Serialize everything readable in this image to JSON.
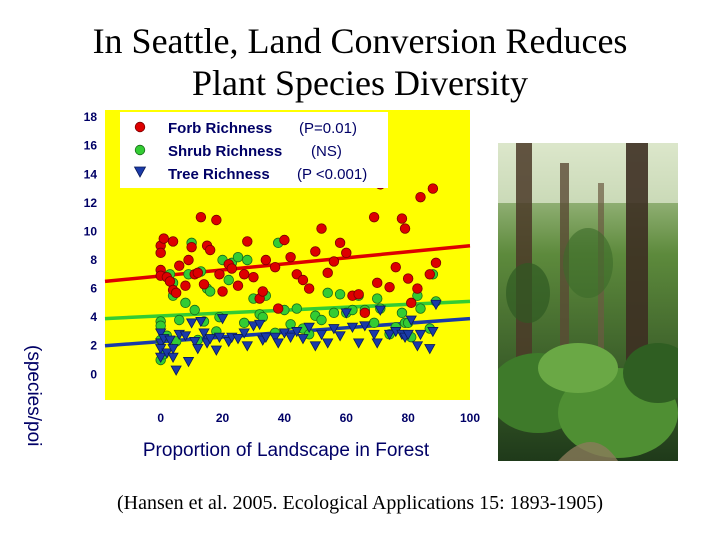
{
  "slide": {
    "title_line1": "In Seattle, Land Conversion Reduces",
    "title_line2": "Plant Species Diversity",
    "citation": "(Hansen et al. 2005. Ecological Applications 15: 1893-1905)"
  },
  "chart_data": {
    "type": "scatter",
    "title": "",
    "xlabel": "Proportion of Landscape in Forest",
    "ylabel": "(species/poi",
    "xlim": [
      -18,
      100
    ],
    "ylim": [
      -1.8,
      18.5
    ],
    "xticks": [
      0,
      20,
      40,
      60,
      80,
      100
    ],
    "yticks": [
      0,
      2,
      4,
      6,
      8,
      10,
      12,
      14,
      16,
      18
    ],
    "background_color": "#ffff00",
    "grid": false,
    "legend_position": "top-left",
    "series": [
      {
        "name": "Forb Richness",
        "stat_label": "(P=0.01)",
        "color": "#dd0000",
        "marker": "circle",
        "trend": [
          [
            -18,
            6.5
          ],
          [
            100,
            9.0
          ]
        ],
        "points": [
          [
            0,
            7.3
          ],
          [
            0,
            6.9
          ],
          [
            0,
            9.0
          ],
          [
            0,
            8.5
          ],
          [
            1,
            9.5
          ],
          [
            2,
            6.8
          ],
          [
            3,
            6.5
          ],
          [
            4,
            5.9
          ],
          [
            4,
            9.3
          ],
          [
            5,
            5.7
          ],
          [
            6,
            7.6
          ],
          [
            8,
            6.2
          ],
          [
            9,
            8.0
          ],
          [
            10,
            8.9
          ],
          [
            11,
            7.0
          ],
          [
            12,
            7.1
          ],
          [
            13,
            11.0
          ],
          [
            14,
            6.3
          ],
          [
            15,
            9.0
          ],
          [
            16,
            8.7
          ],
          [
            18,
            10.8
          ],
          [
            19,
            7.0
          ],
          [
            20,
            5.8
          ],
          [
            22,
            7.7
          ],
          [
            23,
            7.4
          ],
          [
            25,
            6.2
          ],
          [
            27,
            7.0
          ],
          [
            28,
            9.3
          ],
          [
            30,
            6.8
          ],
          [
            32,
            5.3
          ],
          [
            33,
            5.8
          ],
          [
            34,
            8.0
          ],
          [
            37,
            7.5
          ],
          [
            38,
            4.6
          ],
          [
            40,
            9.4
          ],
          [
            42,
            8.2
          ],
          [
            44,
            7.0
          ],
          [
            46,
            6.6
          ],
          [
            48,
            6.0
          ],
          [
            50,
            8.6
          ],
          [
            52,
            10.2
          ],
          [
            54,
            7.1
          ],
          [
            56,
            7.9
          ],
          [
            58,
            9.2
          ],
          [
            60,
            8.5
          ],
          [
            62,
            5.5
          ],
          [
            64,
            5.6
          ],
          [
            66,
            4.3
          ],
          [
            69,
            11.0
          ],
          [
            70,
            6.4
          ],
          [
            71,
            13.3
          ],
          [
            74,
            6.1
          ],
          [
            76,
            7.5
          ],
          [
            78,
            10.9
          ],
          [
            79,
            10.2
          ],
          [
            80,
            6.7
          ],
          [
            81,
            5.0
          ],
          [
            83,
            6.0
          ],
          [
            84,
            12.4
          ],
          [
            87,
            7.0
          ],
          [
            88,
            13.0
          ],
          [
            89,
            7.8
          ]
        ]
      },
      {
        "name": "Shrub Richness",
        "stat_label": "(NS)",
        "color": "#33cc33",
        "marker": "circle",
        "trend": [
          [
            -18,
            3.9
          ],
          [
            100,
            5.1
          ]
        ],
        "points": [
          [
            0,
            3.7
          ],
          [
            0,
            3.4
          ],
          [
            0,
            1.0
          ],
          [
            0,
            2.4
          ],
          [
            1,
            1.4
          ],
          [
            2,
            2.7
          ],
          [
            3,
            7.0
          ],
          [
            4,
            5.5
          ],
          [
            4,
            6.4
          ],
          [
            5,
            2.3
          ],
          [
            6,
            3.8
          ],
          [
            8,
            5.0
          ],
          [
            9,
            7.0
          ],
          [
            10,
            9.2
          ],
          [
            11,
            4.5
          ],
          [
            12,
            2.4
          ],
          [
            13,
            7.2
          ],
          [
            14,
            3.7
          ],
          [
            15,
            6.0
          ],
          [
            16,
            5.8
          ],
          [
            18,
            3.0
          ],
          [
            19,
            4.0
          ],
          [
            20,
            8.0
          ],
          [
            22,
            6.6
          ],
          [
            23,
            7.8
          ],
          [
            25,
            8.2
          ],
          [
            27,
            3.6
          ],
          [
            28,
            8.0
          ],
          [
            30,
            5.3
          ],
          [
            32,
            4.2
          ],
          [
            33,
            4.0
          ],
          [
            34,
            5.5
          ],
          [
            37,
            2.9
          ],
          [
            38,
            9.2
          ],
          [
            40,
            4.5
          ],
          [
            42,
            3.5
          ],
          [
            44,
            4.6
          ],
          [
            46,
            3.2
          ],
          [
            48,
            2.8
          ],
          [
            50,
            4.1
          ],
          [
            52,
            3.8
          ],
          [
            54,
            5.7
          ],
          [
            56,
            4.3
          ],
          [
            58,
            5.6
          ],
          [
            60,
            4.3
          ],
          [
            62,
            4.5
          ],
          [
            64,
            5.5
          ],
          [
            66,
            4.5
          ],
          [
            69,
            3.6
          ],
          [
            70,
            5.3
          ],
          [
            71,
            4.6
          ],
          [
            74,
            2.8
          ],
          [
            76,
            3.3
          ],
          [
            78,
            4.3
          ],
          [
            79,
            3.6
          ],
          [
            80,
            3.6
          ],
          [
            81,
            2.6
          ],
          [
            83,
            5.5
          ],
          [
            84,
            4.6
          ],
          [
            87,
            3.2
          ],
          [
            88,
            7.0
          ],
          [
            89,
            5.1
          ]
        ]
      },
      {
        "name": "Tree Richness",
        "stat_label": "(P <0.001)",
        "color": "#1a3aa8",
        "marker": "triangle-down",
        "trend": [
          [
            -18,
            2.0
          ],
          [
            100,
            3.9
          ]
        ],
        "points": [
          [
            0,
            2.9
          ],
          [
            0,
            2.2
          ],
          [
            0,
            1.8
          ],
          [
            0,
            1.2
          ],
          [
            1,
            2.5
          ],
          [
            2,
            1.5
          ],
          [
            3,
            2.4
          ],
          [
            4,
            1.2
          ],
          [
            4,
            1.8
          ],
          [
            5,
            0.3
          ],
          [
            6,
            2.8
          ],
          [
            8,
            2.7
          ],
          [
            9,
            0.9
          ],
          [
            10,
            3.6
          ],
          [
            11,
            2.3
          ],
          [
            12,
            1.8
          ],
          [
            13,
            3.7
          ],
          [
            14,
            2.9
          ],
          [
            15,
            2.2
          ],
          [
            16,
            2.5
          ],
          [
            18,
            1.7
          ],
          [
            19,
            2.6
          ],
          [
            20,
            3.9
          ],
          [
            22,
            2.3
          ],
          [
            23,
            2.6
          ],
          [
            25,
            2.5
          ],
          [
            27,
            2.9
          ],
          [
            28,
            2.0
          ],
          [
            30,
            3.4
          ],
          [
            32,
            3.5
          ],
          [
            33,
            2.4
          ],
          [
            34,
            2.6
          ],
          [
            37,
            2.6
          ],
          [
            38,
            2.2
          ],
          [
            40,
            2.9
          ],
          [
            42,
            2.6
          ],
          [
            44,
            3.0
          ],
          [
            46,
            2.5
          ],
          [
            48,
            3.3
          ],
          [
            50,
            2.0
          ],
          [
            52,
            2.8
          ],
          [
            54,
            2.2
          ],
          [
            56,
            3.2
          ],
          [
            58,
            2.7
          ],
          [
            60,
            4.3
          ],
          [
            62,
            3.3
          ],
          [
            64,
            2.2
          ],
          [
            66,
            3.4
          ],
          [
            69,
            2.8
          ],
          [
            70,
            2.2
          ],
          [
            71,
            4.5
          ],
          [
            74,
            2.8
          ],
          [
            76,
            3.0
          ],
          [
            78,
            2.8
          ],
          [
            79,
            2.6
          ],
          [
            80,
            2.8
          ],
          [
            81,
            3.8
          ],
          [
            83,
            2.0
          ],
          [
            84,
            2.8
          ],
          [
            87,
            1.8
          ],
          [
            88,
            3.0
          ],
          [
            89,
            4.9
          ]
        ]
      }
    ]
  },
  "photo": {
    "description_icon": "forest-photo-icon",
    "colors": [
      "#1f3a1a",
      "#3e6b2c",
      "#7fae4a",
      "#c8d8b0"
    ]
  }
}
